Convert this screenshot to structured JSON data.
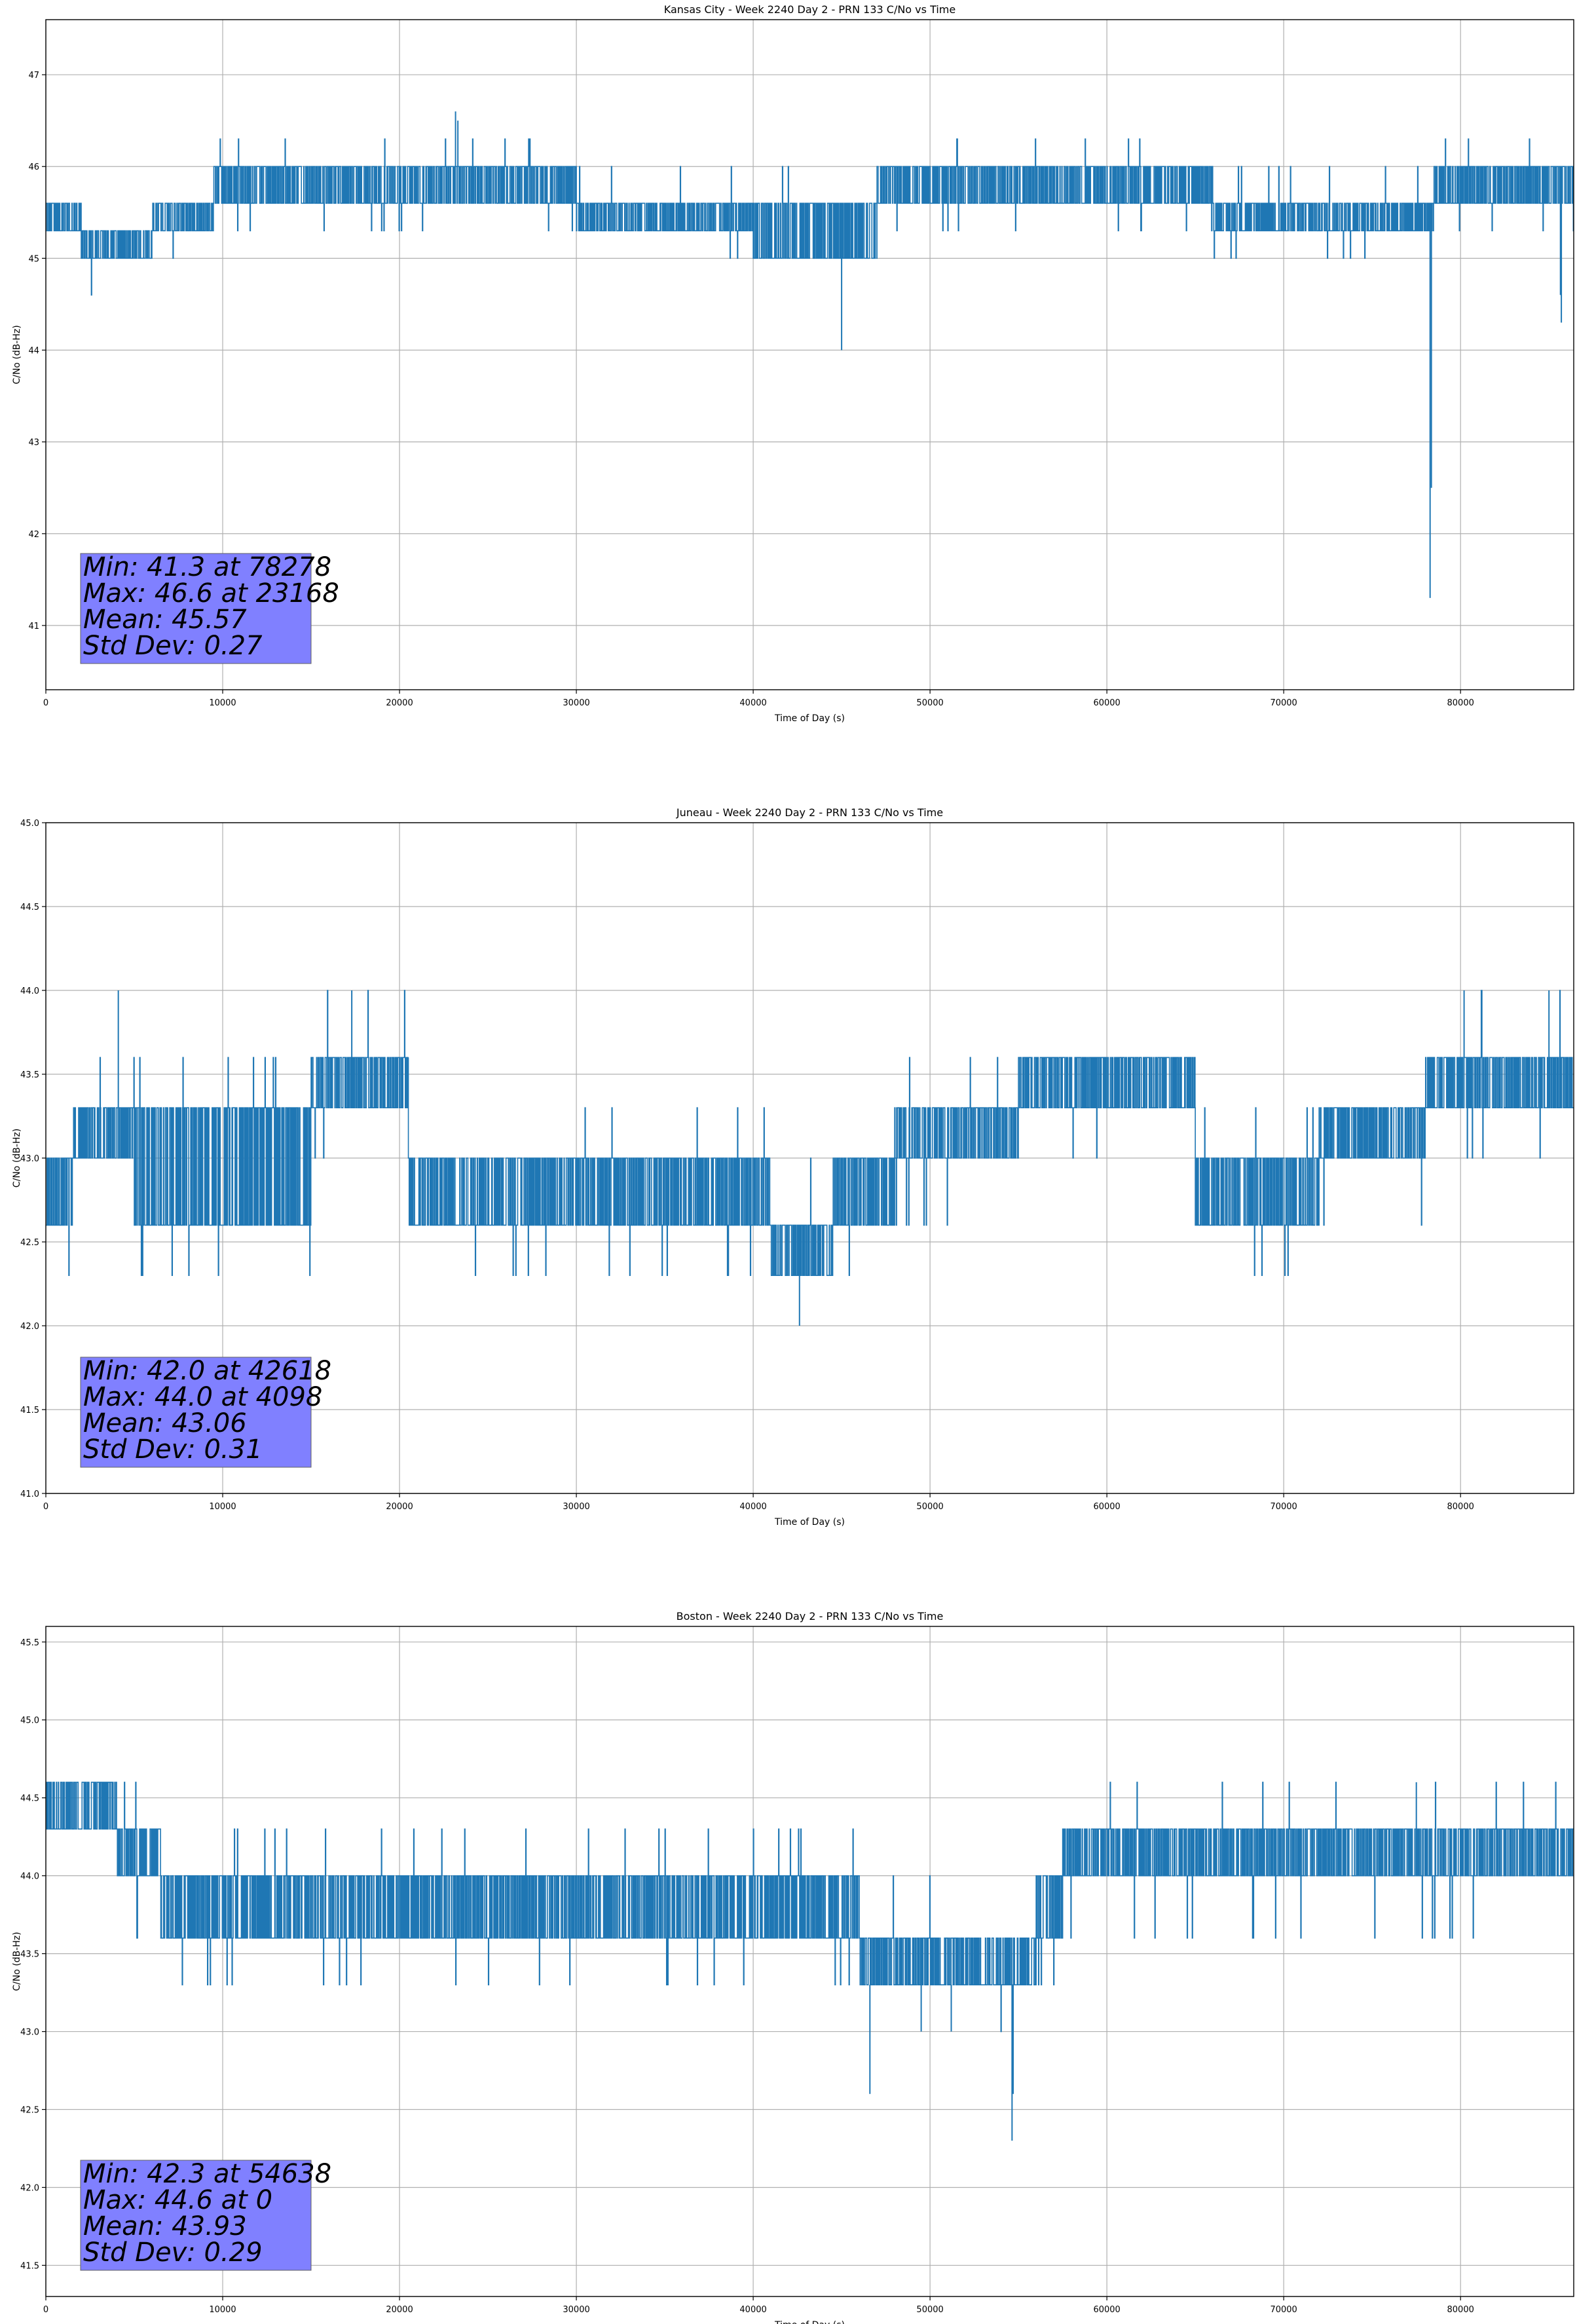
{
  "figure": {
    "background": "#ffffff"
  },
  "style": {
    "line_color": "#1f77b4",
    "grid_color": "#b0b0b0",
    "stats_box_color": "#8080ff"
  },
  "chart_data": [
    {
      "type": "line",
      "title": "Kansas City - Week 2240 Day 2 - PRN 133 C/No vs Time",
      "xlabel": "Time of Day (s)",
      "ylabel": "C/No (dB-Hz)",
      "xlim": [
        0,
        86400
      ],
      "ylim": [
        40.3,
        47.6
      ],
      "xticks": [
        0,
        10000,
        20000,
        30000,
        40000,
        50000,
        60000,
        70000,
        80000
      ],
      "yticks": [
        41,
        42,
        43,
        44,
        45,
        46,
        47
      ],
      "ytick_decimals": 0,
      "grid": true,
      "stats": [
        "Min: 41.3 at 78278",
        "Max: 46.6 at 23168",
        "Mean: 45.57",
        "Std Dev: 0.27"
      ],
      "segments": [
        {
          "x0": 0,
          "x1": 2000,
          "levels": [
            45.3,
            45.6
          ],
          "dip": 45.0
        },
        {
          "x0": 2000,
          "x1": 6000,
          "levels": [
            45.0,
            45.3
          ],
          "dip": 44.6,
          "up": 45.6
        },
        {
          "x0": 6000,
          "x1": 9500,
          "levels": [
            45.3,
            45.6
          ],
          "up": 46.0,
          "dip": 45.0
        },
        {
          "x0": 9500,
          "x1": 30000,
          "levels": [
            45.6,
            46.0
          ],
          "up": 46.3,
          "dip": 45.3
        },
        {
          "x0": 30000,
          "x1": 40000,
          "levels": [
            45.3,
            45.6
          ],
          "up": 46.0,
          "dip": 45.0
        },
        {
          "x0": 40000,
          "x1": 47000,
          "levels": [
            45.0,
            45.6
          ],
          "up": 46.0,
          "dip": 45.0
        },
        {
          "x0": 47000,
          "x1": 66000,
          "levels": [
            45.6,
            46.0
          ],
          "up": 46.3,
          "dip": 45.3
        },
        {
          "x0": 66000,
          "x1": 78500,
          "levels": [
            45.3,
            45.6
          ],
          "up": 46.0,
          "dip": 45.0
        },
        {
          "x0": 78500,
          "x1": 86400,
          "levels": [
            45.6,
            46.0
          ],
          "up": 46.3,
          "dip": 45.3
        }
      ],
      "spikes": [
        [
          23168,
          46.6
        ],
        [
          23300,
          46.5
        ],
        [
          45000,
          44.0
        ],
        [
          78278,
          41.3
        ],
        [
          78350,
          42.5
        ],
        [
          85700,
          44.3
        ],
        [
          85650,
          44.6
        ]
      ]
    },
    {
      "type": "line",
      "title": "Juneau - Week 2240 Day 2 - PRN 133 C/No vs Time",
      "xlabel": "Time of Day (s)",
      "ylabel": "C/No (dB-Hz)",
      "xlim": [
        0,
        86400
      ],
      "ylim": [
        41.0,
        45.0
      ],
      "xticks": [
        0,
        10000,
        20000,
        30000,
        40000,
        50000,
        60000,
        70000,
        80000
      ],
      "yticks": [
        41.0,
        41.5,
        42.0,
        42.5,
        43.0,
        43.5,
        44.0,
        44.5,
        45.0
      ],
      "ytick_decimals": 1,
      "grid": true,
      "stats": [
        "Min: 42.0 at 42618",
        "Max: 44.0 at 4098",
        "Mean: 43.06",
        "Std Dev: 0.31"
      ],
      "segments": [
        {
          "x0": 0,
          "x1": 1500,
          "levels": [
            42.6,
            43.0
          ],
          "dip": 42.3
        },
        {
          "x0": 1500,
          "x1": 5000,
          "levels": [
            43.0,
            43.3
          ],
          "up": 43.6,
          "dip": 42.6
        },
        {
          "x0": 5000,
          "x1": 15000,
          "levels": [
            42.6,
            43.3
          ],
          "up": 43.6,
          "dip": 42.3
        },
        {
          "x0": 15000,
          "x1": 20500,
          "levels": [
            43.3,
            43.6
          ],
          "up": 44.0,
          "dip": 43.0
        },
        {
          "x0": 20500,
          "x1": 41000,
          "levels": [
            42.6,
            43.0
          ],
          "up": 43.3,
          "dip": 42.3
        },
        {
          "x0": 41000,
          "x1": 44500,
          "levels": [
            42.3,
            42.6
          ],
          "up": 43.0,
          "dip": 42.3
        },
        {
          "x0": 44500,
          "x1": 48000,
          "levels": [
            42.6,
            43.0
          ],
          "up": 43.3,
          "dip": 42.3
        },
        {
          "x0": 48000,
          "x1": 55000,
          "levels": [
            43.0,
            43.3
          ],
          "up": 43.6,
          "dip": 42.6
        },
        {
          "x0": 55000,
          "x1": 65000,
          "levels": [
            43.3,
            43.6
          ],
          "up": 43.6,
          "dip": 43.0
        },
        {
          "x0": 65000,
          "x1": 72000,
          "levels": [
            42.6,
            43.0
          ],
          "up": 43.3,
          "dip": 42.3
        },
        {
          "x0": 72000,
          "x1": 78000,
          "levels": [
            43.0,
            43.3
          ],
          "up": 43.6,
          "dip": 42.6
        },
        {
          "x0": 78000,
          "x1": 86400,
          "levels": [
            43.3,
            43.6
          ],
          "up": 44.0,
          "dip": 43.0
        }
      ],
      "spikes": [
        [
          4098,
          44.0
        ],
        [
          17300,
          44.0
        ],
        [
          42618,
          42.0
        ],
        [
          80200,
          44.0
        ],
        [
          85000,
          44.0
        ]
      ]
    },
    {
      "type": "line",
      "title": "Boston - Week 2240 Day 2 - PRN 133 C/No vs Time",
      "xlabel": "Time of Day (s)",
      "ylabel": "C/No (dB-Hz)",
      "xlim": [
        0,
        86400
      ],
      "ylim": [
        41.3,
        45.6
      ],
      "xticks": [
        0,
        10000,
        20000,
        30000,
        40000,
        50000,
        60000,
        70000,
        80000
      ],
      "yticks": [
        41.5,
        42.0,
        42.5,
        43.0,
        43.5,
        44.0,
        44.5,
        45.0,
        45.5
      ],
      "ytick_decimals": 1,
      "grid": true,
      "stats": [
        "Min: 42.3 at 54638",
        "Max: 44.6 at 0",
        "Mean: 43.93",
        "Std Dev: 0.29"
      ],
      "segments": [
        {
          "x0": 0,
          "x1": 4000,
          "levels": [
            44.3,
            44.6
          ],
          "dip": 44.0
        },
        {
          "x0": 4000,
          "x1": 6500,
          "levels": [
            44.0,
            44.3
          ],
          "up": 44.6,
          "dip": 43.6
        },
        {
          "x0": 6500,
          "x1": 46000,
          "levels": [
            43.6,
            44.0
          ],
          "up": 44.3,
          "dip": 43.3
        },
        {
          "x0": 46000,
          "x1": 56000,
          "levels": [
            43.3,
            43.6
          ],
          "up": 44.0,
          "dip": 43.0
        },
        {
          "x0": 56000,
          "x1": 57500,
          "levels": [
            43.6,
            44.0
          ],
          "up": 44.3,
          "dip": 43.3
        },
        {
          "x0": 57500,
          "x1": 86400,
          "levels": [
            44.0,
            44.3
          ],
          "up": 44.6,
          "dip": 43.6
        }
      ],
      "spikes": [
        [
          46600,
          42.6
        ],
        [
          54638,
          42.3
        ],
        [
          54700,
          42.6
        ],
        [
          49500,
          43.0
        ],
        [
          51200,
          43.0
        ],
        [
          77500,
          44.6
        ]
      ]
    }
  ]
}
